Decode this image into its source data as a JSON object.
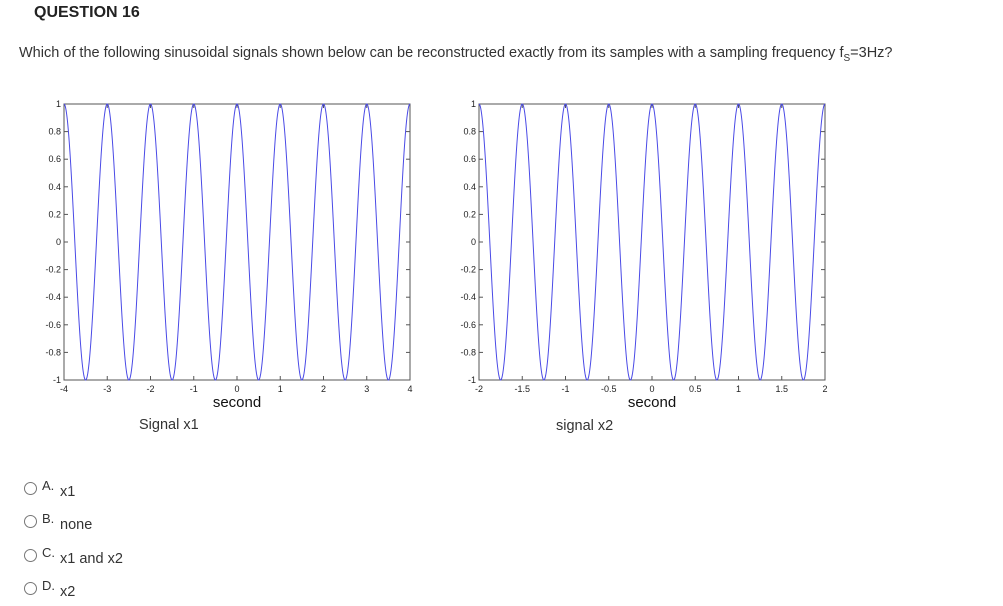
{
  "question": {
    "title": "QUESTION 16",
    "text_before": "Which of the following sinusoidal signals shown below can be reconstructed exactly from its samples with a sampling frequency  f",
    "text_sub": "S",
    "text_after": "=3Hz?"
  },
  "plots": [
    {
      "caption": "Signal x1",
      "xlabel": "second",
      "xticks": [
        "-4",
        "-3",
        "-2",
        "-1",
        "0",
        "1",
        "2",
        "3",
        "4"
      ],
      "yticks": [
        "1",
        "0.8",
        "0.6",
        "0.4",
        "0.2",
        "0",
        "-0.2",
        "-0.4",
        "-0.6",
        "-0.8",
        "-1"
      ]
    },
    {
      "caption": "signal x2",
      "xlabel": "second",
      "xticks": [
        "-2",
        "-1.5",
        "-1",
        "-0.5",
        "0",
        "0.5",
        "1",
        "1.5",
        "2"
      ],
      "yticks": [
        "1",
        "0.8",
        "0.6",
        "0.4",
        "0.2",
        "0",
        "-0.2",
        "-0.4",
        "-0.6",
        "-0.8",
        "-1"
      ]
    }
  ],
  "chart_data": [
    {
      "type": "line",
      "title": "",
      "xlabel": "second",
      "ylabel": "",
      "xlim": [
        -4,
        4
      ],
      "ylim": [
        -1,
        1
      ],
      "series": [
        {
          "function": "cos(2*pi*t)",
          "frequency_hz": 1,
          "amplitude": 1
        }
      ],
      "color": "#4a4ae6"
    },
    {
      "type": "line",
      "title": "",
      "xlabel": "second",
      "ylabel": "",
      "xlim": [
        -2,
        2
      ],
      "ylim": [
        -1,
        1
      ],
      "series": [
        {
          "function": "cos(4*pi*t)",
          "frequency_hz": 2,
          "amplitude": 1
        }
      ],
      "color": "#4a4ae6"
    }
  ],
  "options": [
    {
      "letter": "A.",
      "text": "x1"
    },
    {
      "letter": "B.",
      "text": "none"
    },
    {
      "letter": "C.",
      "text": "x1 and x2"
    },
    {
      "letter": "D.",
      "text": "x2"
    }
  ]
}
